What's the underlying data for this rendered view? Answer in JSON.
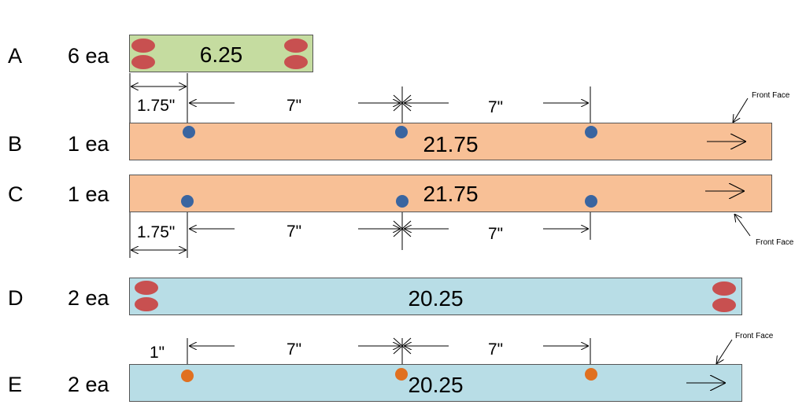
{
  "colors": {
    "green": "#c5dca0",
    "orange": "#f8c096",
    "blue": "#b8dde6",
    "blue_dot": "#3a65a0",
    "orange_dot": "#e07020",
    "red_oval": "#c85050"
  },
  "rows": {
    "A": {
      "letter": "A",
      "qty": "6 ea",
      "length": "6.25"
    },
    "B": {
      "letter": "B",
      "qty": "1 ea",
      "length": "21.75"
    },
    "C": {
      "letter": "C",
      "qty": "1 ea",
      "length": "21.75"
    },
    "D": {
      "letter": "D",
      "qty": "2 ea",
      "length": "20.25"
    },
    "E": {
      "letter": "E",
      "qty": "2 ea",
      "length": "20.25"
    }
  },
  "dims": {
    "b_offset": "1.75\"",
    "b_span1": "7\"",
    "b_span2": "7\"",
    "c_offset": "1.75\"",
    "c_span1": "7\"",
    "c_span2": "7\"",
    "e_offset": "1\"",
    "e_span1": "7\"",
    "e_span2": "7\""
  },
  "notes": {
    "b_front": "Front Face",
    "c_front": "Front Face",
    "e_front": "Front Face"
  }
}
